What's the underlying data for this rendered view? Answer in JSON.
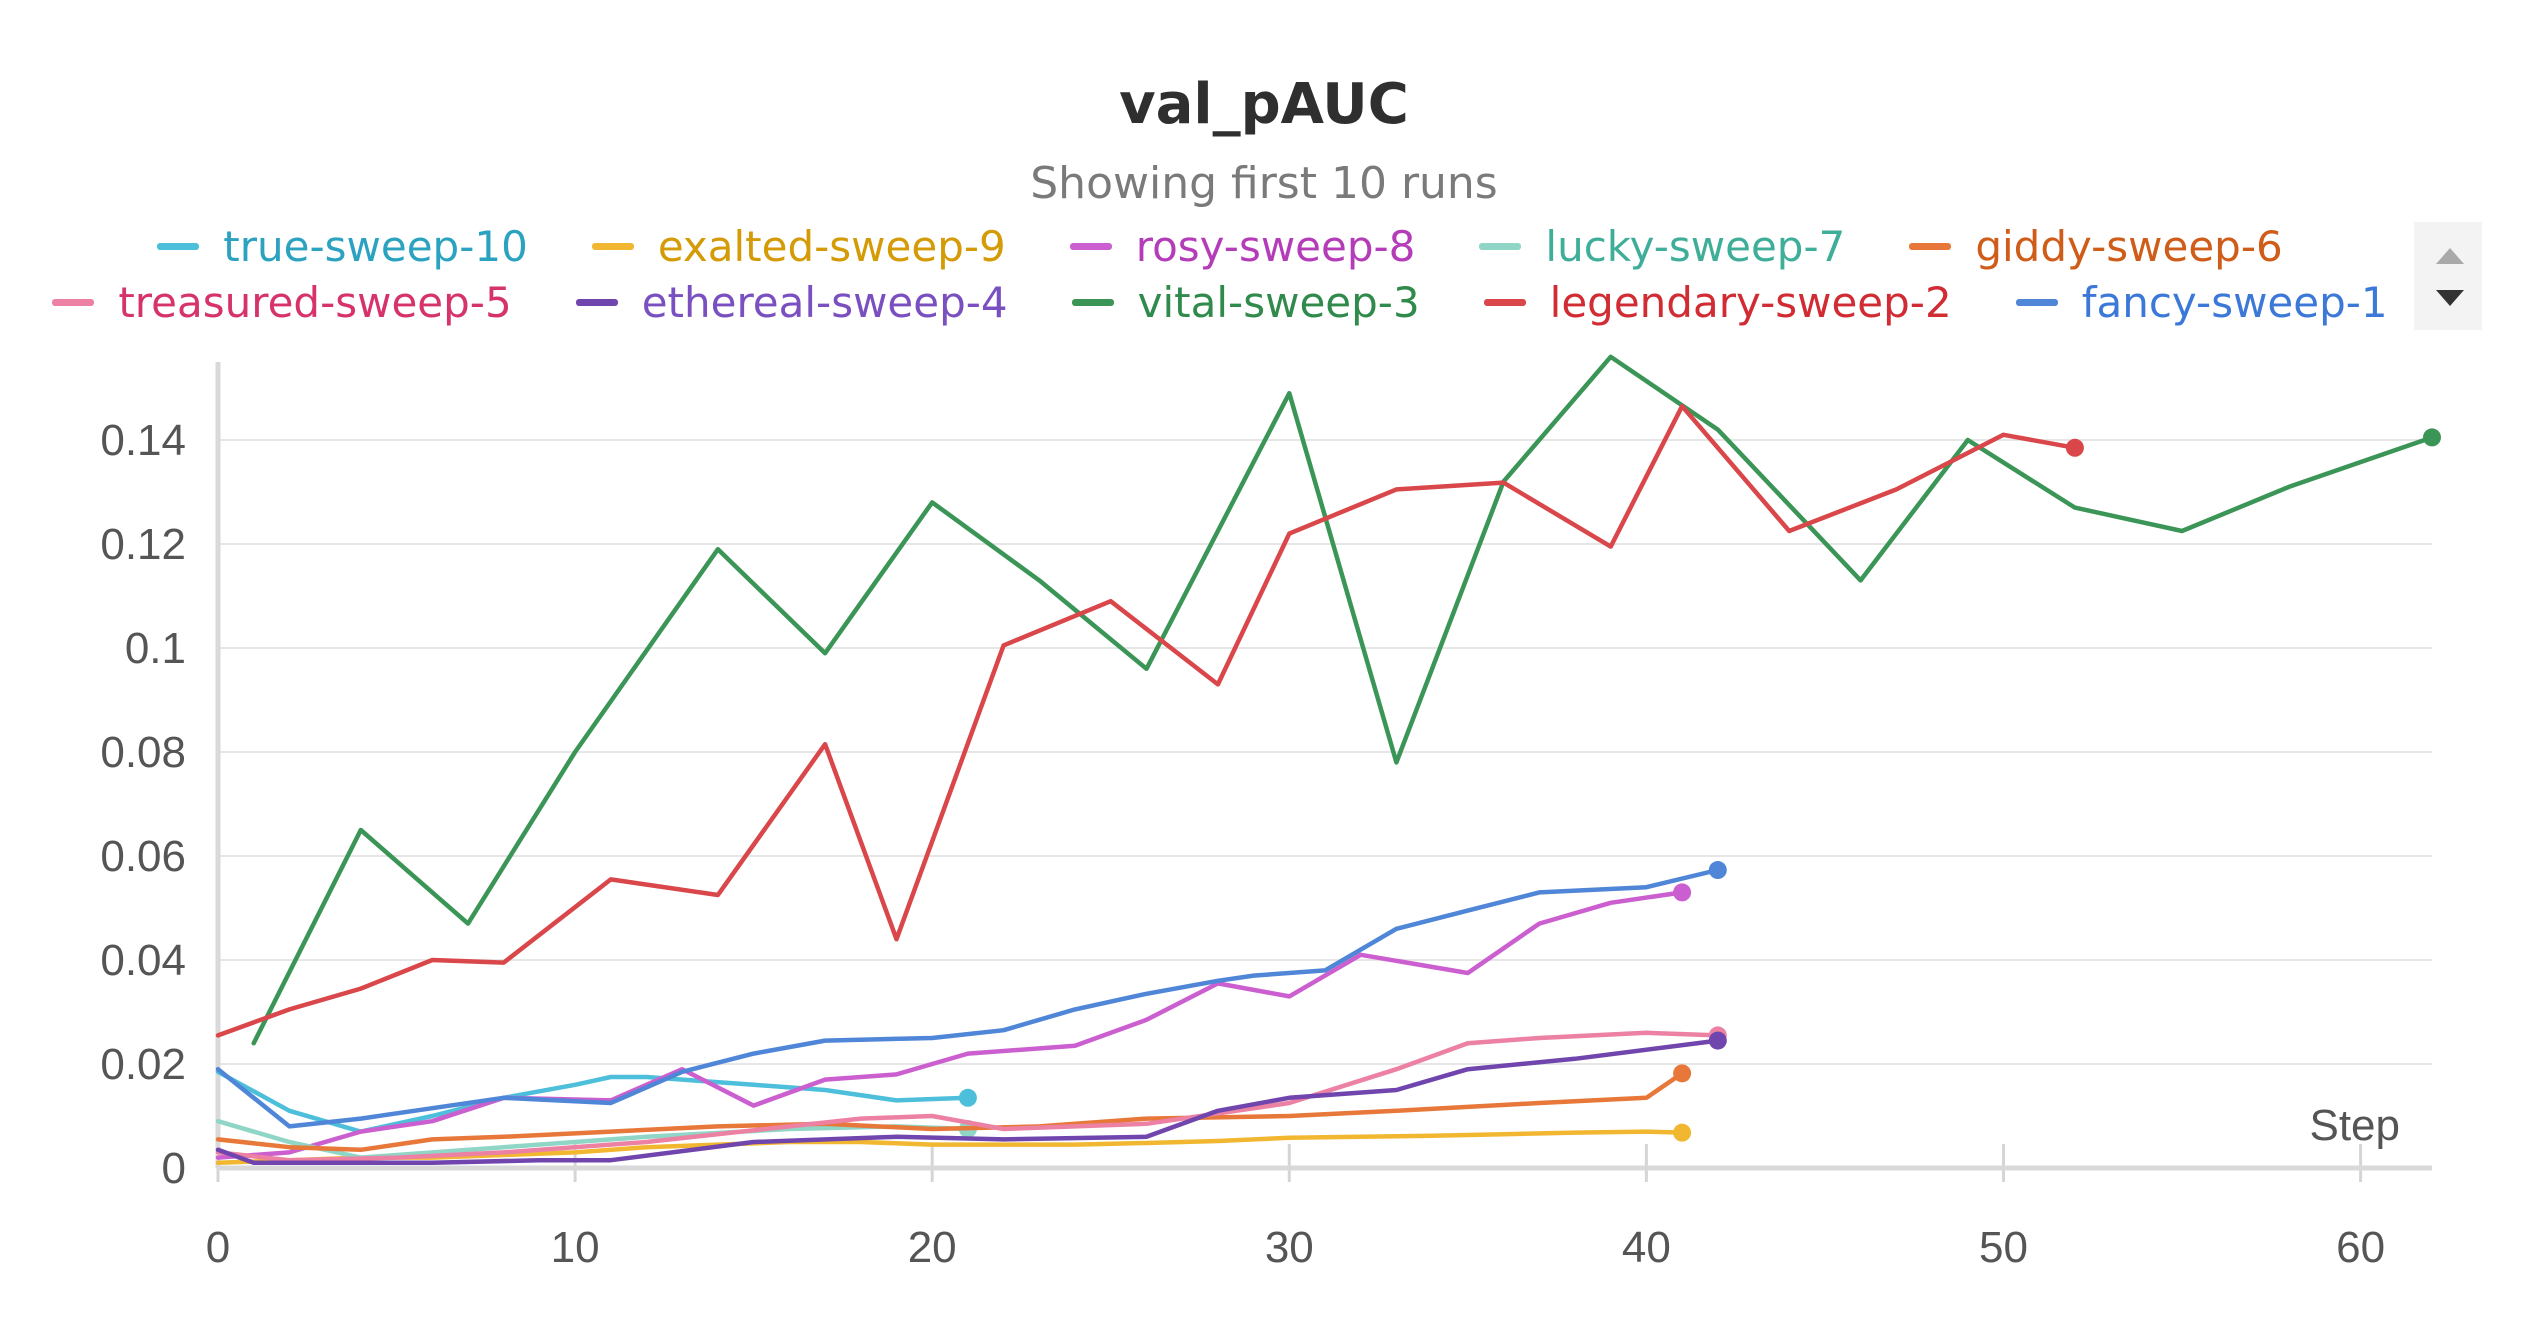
{
  "chart_data": {
    "type": "line",
    "title": "val_pAUC",
    "subtitle": "Showing first 10 runs",
    "xlabel": "Step",
    "ylabel": "",
    "xlim": [
      0,
      62
    ],
    "ylim": [
      0,
      0.155
    ],
    "xticks": [
      0,
      10,
      20,
      30,
      40,
      50,
      60
    ],
    "xtick_labels": [
      "0",
      "10",
      "20",
      "30",
      "40",
      "50",
      "60"
    ],
    "yticks": [
      0,
      0.02,
      0.04,
      0.06,
      0.08,
      0.1,
      0.12,
      0.14
    ],
    "ytick_labels": [
      "0",
      "0.02",
      "0.04",
      "0.06",
      "0.08",
      "0.1",
      "0.12",
      "0.14"
    ],
    "grid": true,
    "legend_position": "top",
    "series": [
      {
        "name": "true-sweep-10",
        "color": "#4ebfdb",
        "label_color": "#2aa2c0",
        "x": [
          0,
          2,
          4,
          6,
          8,
          10,
          11,
          12,
          13,
          15,
          17,
          19,
          21
        ],
        "y": [
          0.0185,
          0.011,
          0.007,
          0.01,
          0.0135,
          0.016,
          0.0175,
          0.0175,
          0.017,
          0.016,
          0.015,
          0.013,
          0.0135
        ]
      },
      {
        "name": "exalted-sweep-9",
        "color": "#f2b731",
        "label_color": "#d49b07",
        "x": [
          0,
          2,
          4,
          6,
          8,
          10,
          12,
          14,
          16,
          18,
          20,
          22,
          24,
          26,
          28,
          30,
          32,
          34,
          36,
          38,
          40,
          41
        ],
        "y": [
          0.001,
          0.0015,
          0.002,
          0.002,
          0.0025,
          0.003,
          0.004,
          0.0045,
          0.005,
          0.005,
          0.0045,
          0.0045,
          0.0045,
          0.0048,
          0.0052,
          0.0058,
          0.006,
          0.0062,
          0.0065,
          0.0068,
          0.007,
          0.0068
        ]
      },
      {
        "name": "rosy-sweep-8",
        "color": "#cc5fcf",
        "label_color": "#b53cb9",
        "x": [
          0,
          2,
          4,
          6,
          8,
          11,
          13,
          15,
          17,
          19,
          21,
          24,
          26,
          28,
          30,
          32,
          35,
          37,
          39,
          41
        ],
        "y": [
          0.002,
          0.003,
          0.007,
          0.009,
          0.0135,
          0.013,
          0.019,
          0.012,
          0.017,
          0.018,
          0.022,
          0.0235,
          0.0285,
          0.0355,
          0.033,
          0.041,
          0.0375,
          0.047,
          0.051,
          0.053
        ]
      },
      {
        "name": "lucky-sweep-7",
        "color": "#8fd6c6",
        "label_color": "#3fae99",
        "x": [
          0,
          2,
          4,
          8,
          12,
          16,
          19,
          21
        ],
        "y": [
          0.009,
          0.005,
          0.002,
          0.004,
          0.006,
          0.0075,
          0.008,
          0.0075
        ]
      },
      {
        "name": "giddy-sweep-6",
        "color": "#e8783a",
        "label_color": "#cf5d19",
        "x": [
          0,
          2,
          4,
          6,
          8,
          11,
          14,
          17,
          20,
          23,
          26,
          30,
          33,
          37,
          40,
          41
        ],
        "y": [
          0.0055,
          0.004,
          0.0035,
          0.0055,
          0.006,
          0.007,
          0.008,
          0.0085,
          0.0075,
          0.008,
          0.0095,
          0.01,
          0.011,
          0.0125,
          0.0135,
          0.0182
        ]
      },
      {
        "name": "treasured-sweep-5",
        "color": "#ec81a3",
        "label_color": "#d6336c",
        "x": [
          0,
          2,
          5,
          8,
          12,
          16,
          18,
          20,
          22,
          26,
          30,
          33,
          35,
          37,
          40,
          42
        ],
        "y": [
          0.003,
          0.0015,
          0.002,
          0.003,
          0.005,
          0.008,
          0.0095,
          0.01,
          0.0075,
          0.0085,
          0.0125,
          0.019,
          0.024,
          0.025,
          0.026,
          0.0255
        ]
      },
      {
        "name": "ethereal-sweep-4",
        "color": "#7045ad",
        "label_color": "#7a4fc0",
        "x": [
          0,
          1,
          3,
          6,
          9,
          11,
          15,
          19,
          22,
          26,
          28,
          30,
          33,
          35,
          38,
          42
        ],
        "y": [
          0.0035,
          0.001,
          0.001,
          0.001,
          0.0015,
          0.0015,
          0.005,
          0.006,
          0.0055,
          0.006,
          0.011,
          0.0135,
          0.015,
          0.019,
          0.021,
          0.0245
        ]
      },
      {
        "name": "vital-sweep-3",
        "color": "#3b9557",
        "label_color": "#2f8a4c",
        "x": [
          1,
          4,
          7,
          10,
          14,
          17,
          20,
          23,
          26,
          30,
          33,
          36,
          39,
          42,
          46,
          49,
          52,
          55,
          58,
          62
        ],
        "y": [
          0.024,
          0.065,
          0.047,
          0.08,
          0.119,
          0.099,
          0.128,
          0.113,
          0.096,
          0.149,
          0.078,
          0.132,
          0.156,
          0.142,
          0.113,
          0.14,
          0.127,
          0.1225,
          0.131,
          0.1405
        ]
      },
      {
        "name": "legendary-sweep-2",
        "color": "#d9474a",
        "label_color": "#d12c33",
        "x": [
          0,
          2,
          4,
          6,
          8,
          11,
          14,
          17,
          19,
          22,
          25,
          28,
          30,
          33,
          36,
          39,
          41,
          44,
          47,
          50,
          52
        ],
        "y": [
          0.0255,
          0.0305,
          0.0345,
          0.04,
          0.0395,
          0.0555,
          0.0525,
          0.0815,
          0.044,
          0.1005,
          0.109,
          0.093,
          0.122,
          0.1305,
          0.1318,
          0.1195,
          0.1465,
          0.1225,
          0.1305,
          0.141,
          0.1385
        ]
      },
      {
        "name": "fancy-sweep-1",
        "color": "#4f86d8",
        "label_color": "#3c78d8",
        "x": [
          0,
          2,
          4,
          6,
          8,
          11,
          13,
          15,
          17,
          20,
          22,
          24,
          26,
          28,
          29,
          31,
          33,
          35,
          37,
          40,
          42
        ],
        "y": [
          0.019,
          0.008,
          0.0095,
          0.0115,
          0.0135,
          0.0125,
          0.0185,
          0.022,
          0.0245,
          0.025,
          0.0265,
          0.0305,
          0.0335,
          0.036,
          0.037,
          0.038,
          0.046,
          0.0495,
          0.053,
          0.054,
          0.0573
        ]
      }
    ]
  }
}
